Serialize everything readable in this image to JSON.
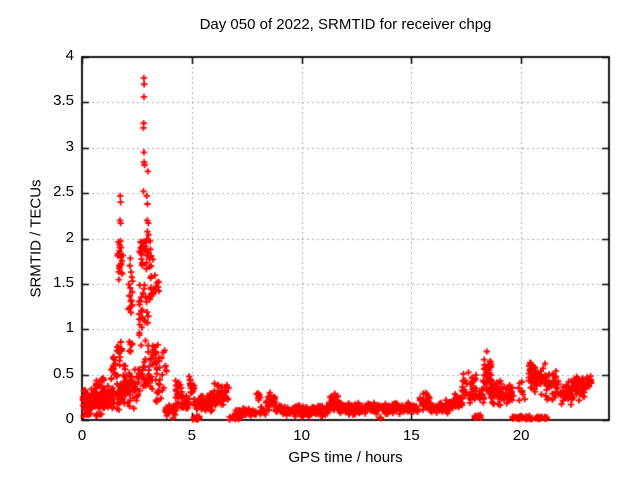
{
  "chart_data": {
    "type": "scatter",
    "title": "Day 050 of 2022, SRMTID for receiver chpg",
    "xlabel": "GPS time / hours",
    "ylabel": "SRMTID / TECUs",
    "xlim": [
      0,
      24
    ],
    "ylim": [
      0,
      4
    ],
    "xticks": [
      0,
      5,
      10,
      15,
      20
    ],
    "yticks": [
      0,
      0.5,
      1,
      1.5,
      2,
      2.5,
      3,
      3.5,
      4
    ],
    "grid": true,
    "grid_style": "dotted",
    "grid_color": "#ababab",
    "axis_color": "#000000",
    "background_color": "#ffffff",
    "legend": "none",
    "series": [
      {
        "name": "SRMTID",
        "marker": "plus",
        "color": "#ff0000",
        "points": [
          [
            2.82,
            3.77
          ],
          [
            2.83,
            3.7
          ],
          [
            2.82,
            3.56
          ],
          [
            2.81,
            3.27
          ],
          [
            2.8,
            3.22
          ],
          [
            2.82,
            2.95
          ],
          [
            2.83,
            2.84
          ],
          [
            2.85,
            2.81
          ],
          [
            3.0,
            2.74
          ],
          [
            2.8,
            2.52
          ],
          [
            2.95,
            2.47
          ],
          [
            2.98,
            2.38
          ],
          [
            2.97,
            2.2
          ],
          [
            3.02,
            2.17
          ],
          [
            1.74,
            2.47
          ],
          [
            1.76,
            2.4
          ],
          [
            1.73,
            2.2
          ],
          [
            1.76,
            2.17
          ],
          [
            1.75,
            1.97
          ],
          [
            1.72,
            1.93
          ],
          [
            1.78,
            1.9
          ],
          [
            1.7,
            1.86
          ],
          [
            1.8,
            1.62
          ],
          [
            2.2,
            1.78
          ],
          [
            2.18,
            1.7
          ],
          [
            2.24,
            1.63
          ],
          [
            3.1,
            1.97
          ],
          [
            3.12,
            1.88
          ]
        ],
        "density_bands": [
          [
            0.02,
            0.55,
            0.08,
            0.35,
            65
          ],
          [
            0.05,
            0.95,
            0.03,
            0.12,
            18
          ],
          [
            0.55,
            0.78,
            0.28,
            0.48,
            10
          ],
          [
            0.55,
            1.0,
            0.1,
            0.35,
            40
          ],
          [
            0.82,
            1.0,
            0.3,
            0.56,
            12
          ],
          [
            1.0,
            1.45,
            0.08,
            0.38,
            50
          ],
          [
            1.32,
            1.52,
            0.4,
            0.78,
            16
          ],
          [
            1.5,
            2.05,
            0.1,
            0.5,
            45
          ],
          [
            1.58,
            1.82,
            0.5,
            0.97,
            14
          ],
          [
            1.62,
            1.88,
            1.45,
            2.05,
            16
          ],
          [
            1.88,
            2.08,
            0.25,
            0.7,
            12
          ],
          [
            2.05,
            2.5,
            0.1,
            0.6,
            35
          ],
          [
            2.1,
            2.3,
            1.05,
            1.85,
            14
          ],
          [
            2.15,
            2.32,
            0.6,
            1.05,
            8
          ],
          [
            2.5,
            3.0,
            0.15,
            0.75,
            30
          ],
          [
            2.55,
            3.0,
            0.78,
            1.6,
            26
          ],
          [
            2.6,
            3.05,
            1.65,
            2.12,
            30
          ],
          [
            3.02,
            3.35,
            0.95,
            2.0,
            16
          ],
          [
            3.0,
            3.42,
            0.25,
            0.95,
            22
          ],
          [
            3.15,
            3.5,
            1.35,
            1.6,
            7
          ],
          [
            3.35,
            3.85,
            0.15,
            0.88,
            32
          ],
          [
            3.8,
            4.3,
            0.02,
            0.18,
            35
          ],
          [
            4.25,
            4.55,
            0.15,
            0.48,
            20
          ],
          [
            4.5,
            4.85,
            0.08,
            0.3,
            22
          ],
          [
            4.85,
            5.12,
            0.15,
            0.55,
            18
          ],
          [
            5.05,
            5.35,
            0.0,
            0.05,
            10
          ],
          [
            5.1,
            5.4,
            0.1,
            0.25,
            14
          ],
          [
            5.35,
            6.0,
            0.08,
            0.3,
            45
          ],
          [
            5.95,
            6.7,
            0.12,
            0.42,
            45
          ],
          [
            6.7,
            7.3,
            0.0,
            0.06,
            16
          ],
          [
            6.9,
            7.35,
            0.04,
            0.15,
            14
          ],
          [
            7.3,
            7.95,
            0.03,
            0.14,
            45
          ],
          [
            7.95,
            8.12,
            0.18,
            0.37,
            8
          ],
          [
            8.1,
            8.4,
            0.04,
            0.15,
            18
          ],
          [
            8.35,
            8.8,
            0.1,
            0.32,
            25
          ],
          [
            8.8,
            9.3,
            0.04,
            0.18,
            30
          ],
          [
            9.3,
            11.25,
            0.03,
            0.17,
            120
          ],
          [
            11.25,
            11.75,
            0.07,
            0.32,
            35
          ],
          [
            11.75,
            13.55,
            0.05,
            0.2,
            110
          ],
          [
            13.55,
            13.68,
            0.0,
            0.05,
            5
          ],
          [
            13.65,
            15.3,
            0.06,
            0.2,
            100
          ],
          [
            15.3,
            15.85,
            0.08,
            0.32,
            32
          ],
          [
            15.85,
            16.9,
            0.06,
            0.23,
            62
          ],
          [
            16.9,
            17.35,
            0.1,
            0.3,
            28
          ],
          [
            17.3,
            17.98,
            0.14,
            0.55,
            35
          ],
          [
            17.88,
            18.18,
            0.0,
            0.06,
            10
          ],
          [
            18.05,
            18.32,
            0.15,
            0.38,
            14
          ],
          [
            18.28,
            18.65,
            0.25,
            0.76,
            45
          ],
          [
            18.62,
            19.2,
            0.15,
            0.45,
            45
          ],
          [
            19.2,
            19.65,
            0.12,
            0.42,
            28
          ],
          [
            19.6,
            20.55,
            0.0,
            0.05,
            40
          ],
          [
            20.62,
            20.95,
            0.0,
            0.05,
            14
          ],
          [
            21.05,
            21.22,
            0.0,
            0.04,
            6
          ],
          [
            19.85,
            20.2,
            0.18,
            0.45,
            9
          ],
          [
            20.25,
            20.5,
            0.3,
            0.73,
            15
          ],
          [
            20.5,
            21.1,
            0.22,
            0.68,
            38
          ],
          [
            21.1,
            21.72,
            0.18,
            0.56,
            42
          ],
          [
            21.72,
            22.32,
            0.15,
            0.46,
            36
          ],
          [
            22.3,
            22.95,
            0.2,
            0.56,
            44
          ],
          [
            22.95,
            23.2,
            0.28,
            0.52,
            15
          ]
        ]
      }
    ]
  }
}
